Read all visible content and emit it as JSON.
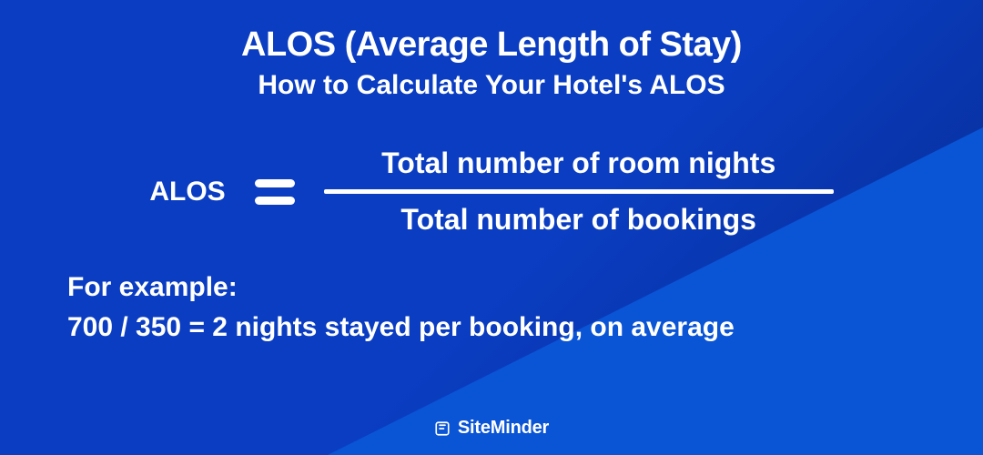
{
  "colors": {
    "bg_top": "#0a3dc2",
    "bg_mid": "#0a3dc2",
    "bg_bot": "#072a8c",
    "triangle": "#0a54d6",
    "text": "#ffffff"
  },
  "header": {
    "title": "ALOS (Average Length of Stay)",
    "title_fontsize": 38,
    "subtitle": "How to Calculate Your Hotel's ALOS",
    "subtitle_fontsize": 30
  },
  "formula": {
    "lhs": "ALOS",
    "lhs_fontsize": 30,
    "numerator": "Total number of room nights",
    "denominator": "Total number of bookings",
    "fraction_fontsize": 32,
    "line_width": 560,
    "line_thickness": 5,
    "eq_bar_width": 44,
    "eq_bar_thickness": 9,
    "eq_bar_gap": 10
  },
  "example": {
    "label": "For example:",
    "text": "700 / 350 = 2 nights stayed per booking, on average",
    "fontsize": 30
  },
  "footer": {
    "brand": "SiteMinder",
    "brand_fontsize": 20,
    "icon_color": "#ffffff"
  }
}
